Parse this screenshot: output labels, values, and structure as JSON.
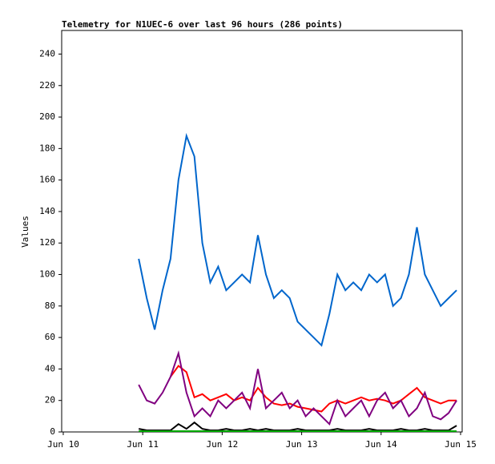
{
  "chart_data": {
    "type": "line",
    "title": "Telemetry for N1UEC-6 over last 96 hours (286 points)",
    "y_label": "Values",
    "x": [
      10.95,
      11.05,
      11.15,
      11.25,
      11.35,
      11.45,
      11.55,
      11.65,
      11.75,
      11.85,
      11.95,
      12.05,
      12.15,
      12.25,
      12.35,
      12.45,
      12.55,
      12.65,
      12.75,
      12.85,
      12.95,
      13.05,
      13.15,
      13.25,
      13.35,
      13.45,
      13.55,
      13.65,
      13.75,
      13.85,
      13.95,
      14.05,
      14.15,
      14.25,
      14.35,
      14.45,
      14.55,
      14.65,
      14.75,
      14.85,
      14.95
    ],
    "series": [
      {
        "color": "#0066cc",
        "values": [
          110,
          85,
          65,
          90,
          110,
          160,
          188,
          175,
          120,
          95,
          105,
          90,
          95,
          100,
          95,
          125,
          100,
          85,
          90,
          85,
          70,
          65,
          60,
          55,
          75,
          100,
          90,
          95,
          90,
          100,
          95,
          100,
          80,
          85,
          100,
          130,
          100,
          90,
          80,
          85,
          90
        ]
      },
      {
        "color": "#ff0000",
        "values": [
          null,
          null,
          null,
          null,
          35,
          42,
          38,
          22,
          24,
          20,
          22,
          24,
          20,
          22,
          20,
          28,
          22,
          18,
          17,
          18,
          16,
          15,
          14,
          13,
          18,
          20,
          18,
          20,
          22,
          20,
          21,
          20,
          18,
          20,
          24,
          28,
          22,
          20,
          18,
          20,
          20
        ]
      },
      {
        "color": "#800080",
        "values": [
          30,
          20,
          18,
          25,
          35,
          50,
          25,
          10,
          15,
          10,
          20,
          15,
          20,
          25,
          15,
          40,
          15,
          20,
          25,
          15,
          20,
          10,
          15,
          10,
          5,
          20,
          10,
          15,
          20,
          10,
          20,
          25,
          15,
          20,
          10,
          15,
          25,
          10,
          8,
          12,
          20
        ]
      },
      {
        "color": "#000000",
        "values": [
          2,
          1,
          1,
          1,
          1,
          5,
          2,
          6,
          2,
          1,
          1,
          2,
          1,
          1,
          2,
          1,
          2,
          1,
          1,
          1,
          2,
          1,
          1,
          1,
          1,
          2,
          1,
          1,
          1,
          2,
          1,
          1,
          1,
          2,
          1,
          1,
          2,
          1,
          1,
          1,
          4
        ]
      },
      {
        "color": "#00aa00",
        "values": [
          0.5,
          0.5,
          0.5,
          0.5,
          0.5,
          0.5,
          0.5,
          0.5,
          0.5,
          0.5,
          0.5,
          0.5,
          0.5,
          0.5,
          0.5,
          0.5,
          0.5,
          0.5,
          0.5,
          0.5,
          0.5,
          0.5,
          0.5,
          0.5,
          0.5,
          0.5,
          0.5,
          0.5,
          0.5,
          0.5,
          0.5,
          0.5,
          0.5,
          0.5,
          0.5,
          0.5,
          0.5,
          0.5,
          0.5,
          0.5,
          0.5
        ]
      }
    ],
    "xlim": [
      9.98,
      15.02
    ],
    "xticks": [
      {
        "value": 10,
        "label": "Jun 10"
      },
      {
        "value": 11,
        "label": "Jun 11"
      },
      {
        "value": 12,
        "label": "Jun 12"
      },
      {
        "value": 13,
        "label": "Jun 13"
      },
      {
        "value": 14,
        "label": "Jun 14"
      },
      {
        "value": 15,
        "label": "Jun 15"
      }
    ],
    "ylim": [
      0,
      255
    ],
    "yticks": [
      0,
      20,
      40,
      60,
      80,
      100,
      120,
      140,
      160,
      180,
      200,
      220,
      240
    ]
  }
}
